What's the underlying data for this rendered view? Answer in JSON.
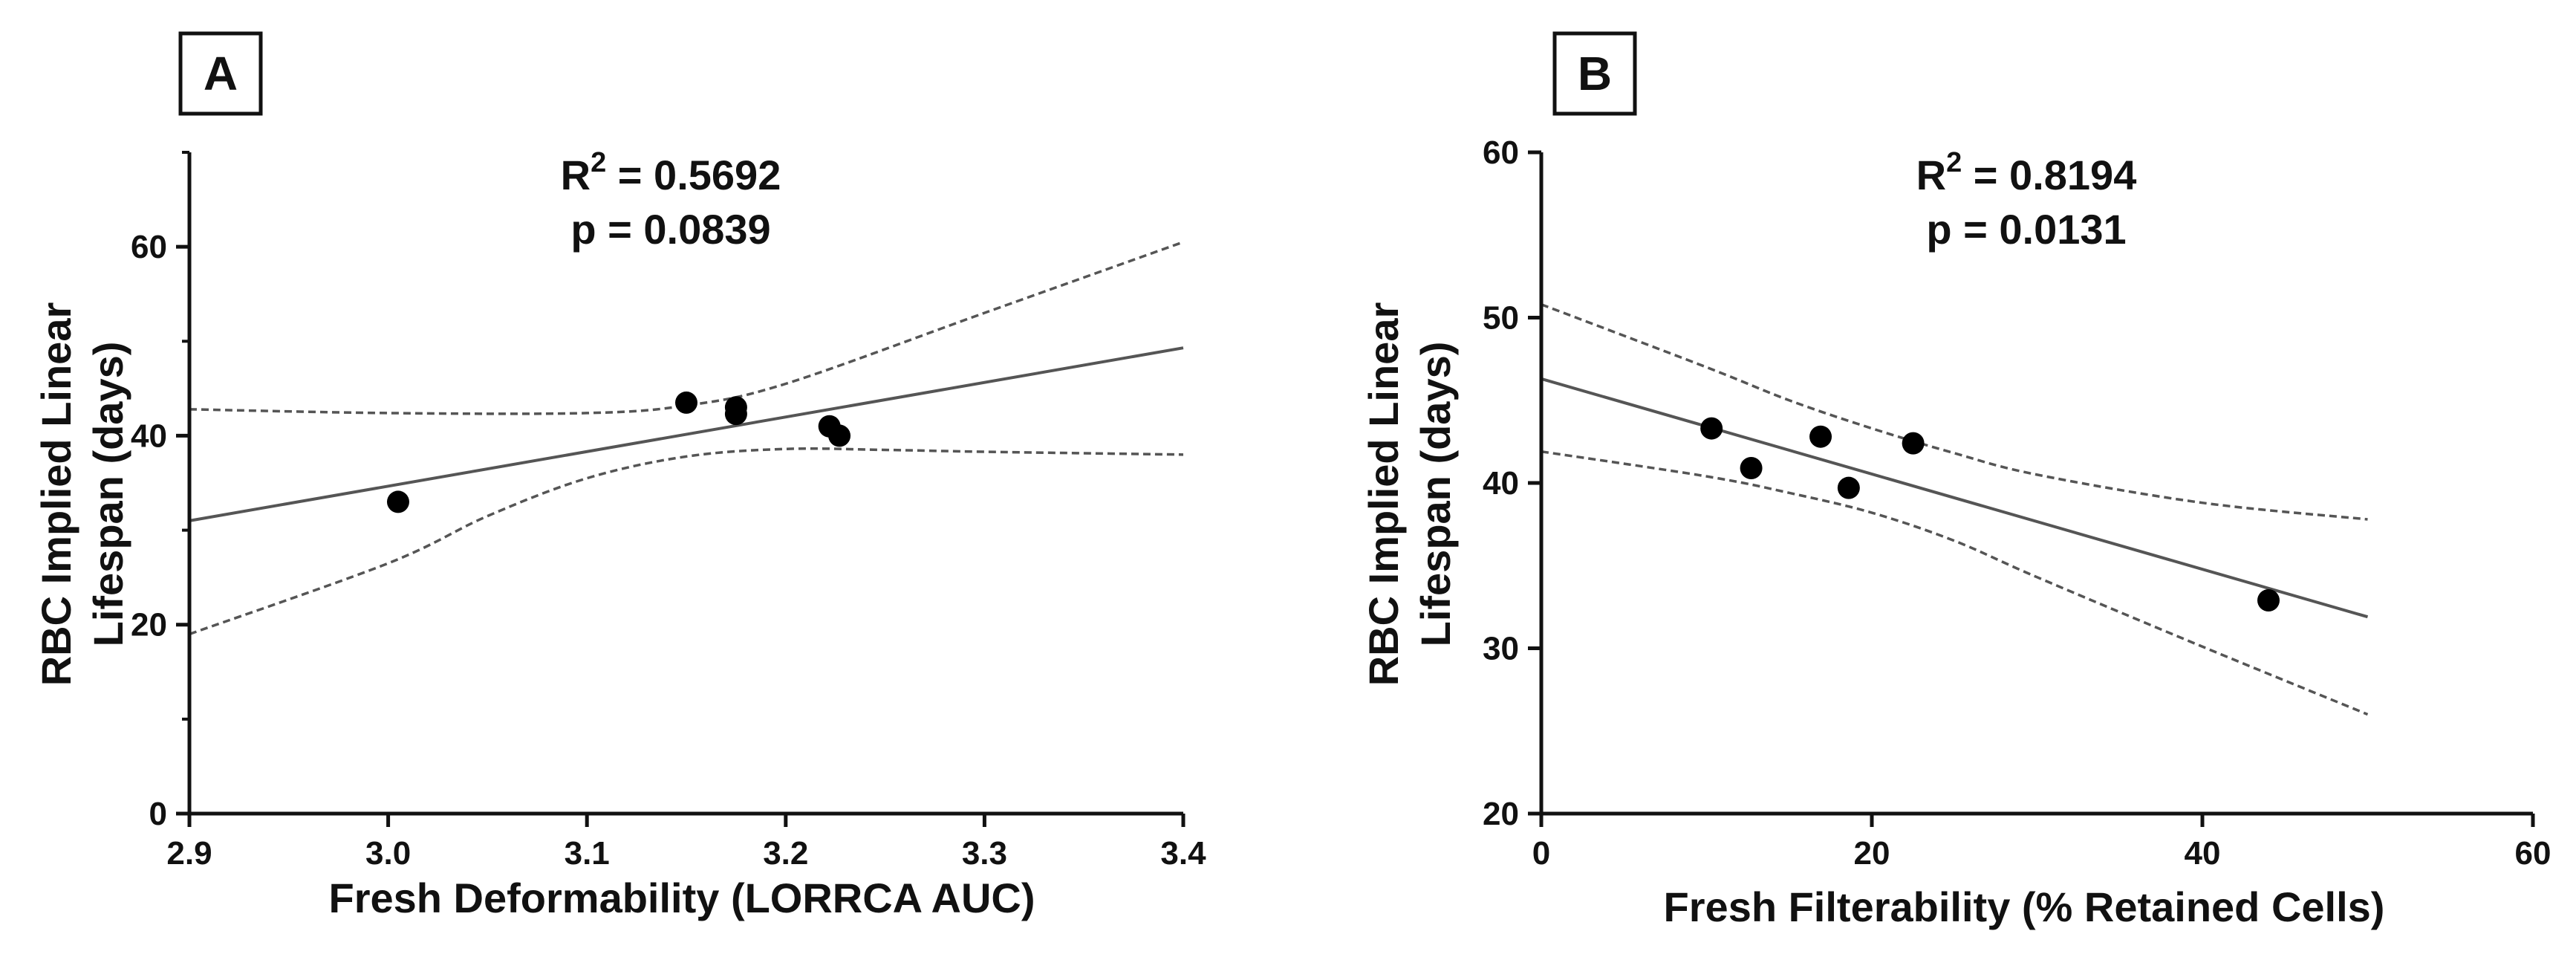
{
  "chart_data": [
    {
      "type": "scatter",
      "panel_label": "A",
      "xlabel": "Fresh Deformability (LORRCA AUC)",
      "ylabel_lines": [
        "RBC Implied Linear",
        "Lifespan (days)"
      ],
      "xlim": [
        2.9,
        3.4
      ],
      "ylim": [
        0,
        70
      ],
      "x_ticks": [
        2.9,
        3.0,
        3.1,
        3.2,
        3.3,
        3.4
      ],
      "x_tick_labels": [
        "2.9",
        "3.0",
        "3.1",
        "3.2",
        "3.3",
        "3.4"
      ],
      "y_ticks": [
        0,
        20,
        40,
        60
      ],
      "y_tick_labels": [
        "0",
        "20",
        "40",
        "60"
      ],
      "y_minor_step": 10,
      "points": [
        {
          "x": 3.005,
          "y": 33
        },
        {
          "x": 3.15,
          "y": 43.5
        },
        {
          "x": 3.175,
          "y": 43
        },
        {
          "x": 3.175,
          "y": 42.3
        },
        {
          "x": 3.222,
          "y": 41
        },
        {
          "x": 3.227,
          "y": 40
        }
      ],
      "fit_line": [
        {
          "x": 2.9,
          "y": 31
        },
        {
          "x": 3.4,
          "y": 49.3
        }
      ],
      "ci_upper": [
        {
          "x": 2.9,
          "y": 42.8
        },
        {
          "x": 3.0,
          "y": 42.4
        },
        {
          "x": 3.1,
          "y": 42.4
        },
        {
          "x": 3.15,
          "y": 43.2
        },
        {
          "x": 3.2,
          "y": 45.5
        },
        {
          "x": 3.3,
          "y": 53
        },
        {
          "x": 3.4,
          "y": 60.5
        }
      ],
      "ci_lower": [
        {
          "x": 2.9,
          "y": 19
        },
        {
          "x": 3.0,
          "y": 26.5
        },
        {
          "x": 3.05,
          "y": 31.5
        },
        {
          "x": 3.1,
          "y": 35.5
        },
        {
          "x": 3.15,
          "y": 37.8
        },
        {
          "x": 3.2,
          "y": 38.6
        },
        {
          "x": 3.25,
          "y": 38.5
        },
        {
          "x": 3.3,
          "y": 38.3
        },
        {
          "x": 3.4,
          "y": 38
        }
      ],
      "r2_label": "R",
      "r2_sup": "2",
      "r2_value": " = 0.5692",
      "p_text": "p = 0.0839"
    },
    {
      "type": "scatter",
      "panel_label": "B",
      "xlabel": "Fresh Filterability (% Retained Cells)",
      "ylabel_lines": [
        "RBC Implied Linear",
        "Lifespan (days)"
      ],
      "xlim": [
        0,
        60
      ],
      "ylim": [
        20,
        60
      ],
      "x_ticks": [
        0,
        20,
        40,
        60
      ],
      "x_tick_labels": [
        "0",
        "20",
        "40",
        "60"
      ],
      "y_ticks": [
        20,
        30,
        40,
        50,
        60
      ],
      "y_tick_labels": [
        "20",
        "30",
        "40",
        "50",
        "60"
      ],
      "y_minor_step": null,
      "points": [
        {
          "x": 10.3,
          "y": 43.3
        },
        {
          "x": 12.7,
          "y": 40.9
        },
        {
          "x": 16.9,
          "y": 42.8
        },
        {
          "x": 18.6,
          "y": 39.7
        },
        {
          "x": 22.5,
          "y": 42.4
        },
        {
          "x": 44,
          "y": 32.9
        }
      ],
      "fit_line": [
        {
          "x": 0,
          "y": 46.3
        },
        {
          "x": 50,
          "y": 31.9
        }
      ],
      "ci_upper": [
        {
          "x": 0,
          "y": 50.8
        },
        {
          "x": 10,
          "y": 47
        },
        {
          "x": 15,
          "y": 45
        },
        {
          "x": 20,
          "y": 43.3
        },
        {
          "x": 25,
          "y": 41.8
        },
        {
          "x": 30,
          "y": 40.5
        },
        {
          "x": 40,
          "y": 38.8
        },
        {
          "x": 50,
          "y": 37.8
        }
      ],
      "ci_lower": [
        {
          "x": 0,
          "y": 41.9
        },
        {
          "x": 10,
          "y": 40.4
        },
        {
          "x": 15,
          "y": 39.4
        },
        {
          "x": 20,
          "y": 38.2
        },
        {
          "x": 25,
          "y": 36.5
        },
        {
          "x": 30,
          "y": 34.3
        },
        {
          "x": 40,
          "y": 30.1
        },
        {
          "x": 50,
          "y": 26
        }
      ],
      "r2_label": "R",
      "r2_sup": "2",
      "r2_value": " = 0.8194",
      "p_text": "p = 0.0131"
    }
  ]
}
